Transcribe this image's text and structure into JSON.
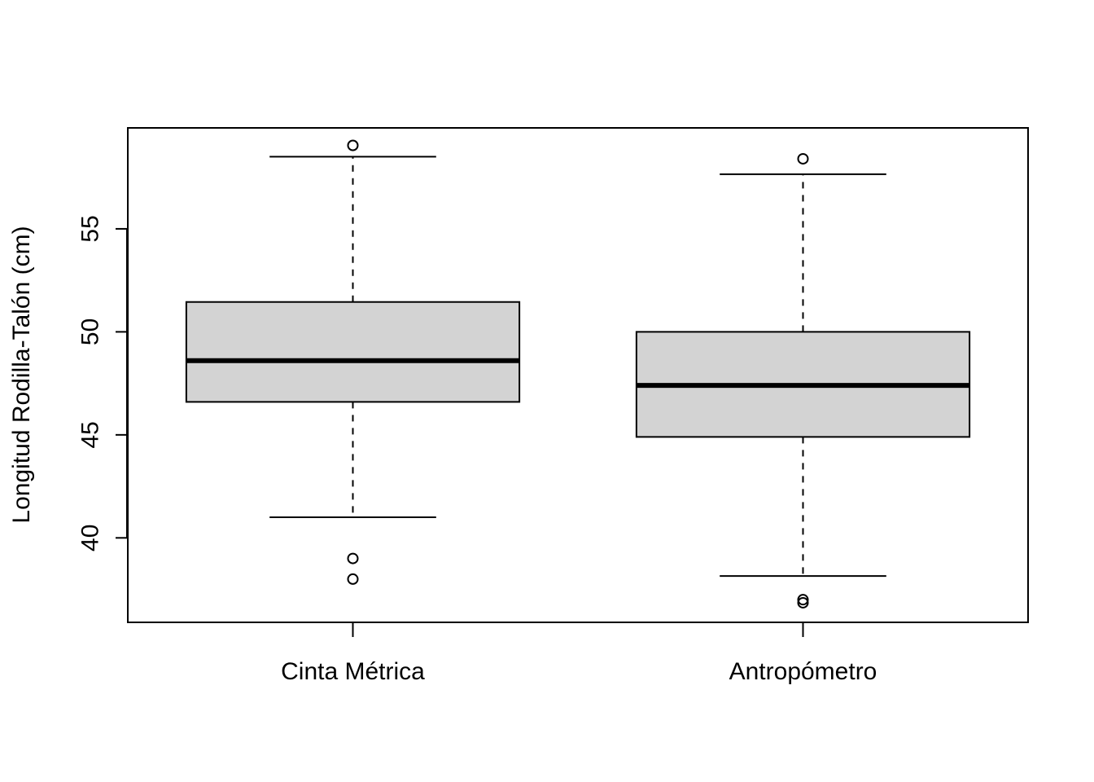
{
  "chart_data": {
    "type": "boxplot",
    "title": "",
    "xlabel": "",
    "ylabel": "Longitud Rodilla-Talón (cm)",
    "categories": [
      "Cinta Métrica",
      "Antropómetro"
    ],
    "yticks": [
      40,
      45,
      50,
      55
    ],
    "ylim": [
      35.9,
      59.9
    ],
    "grid": false,
    "legend": "none",
    "colors": {
      "box_fill": "#d3d3d3",
      "stroke": "#000000"
    },
    "boxes": [
      {
        "name": "Cinta Métrica",
        "whisker_low": 41.0,
        "q1": 46.6,
        "median": 48.6,
        "q3": 51.45,
        "whisker_high": 58.5,
        "outliers": [
          59.05,
          39.0,
          38.0
        ]
      },
      {
        "name": "Antropómetro",
        "whisker_low": 38.15,
        "q1": 44.9,
        "median": 47.4,
        "q3": 50.0,
        "whisker_high": 57.65,
        "outliers": [
          58.4,
          37.0,
          36.85
        ]
      }
    ]
  }
}
